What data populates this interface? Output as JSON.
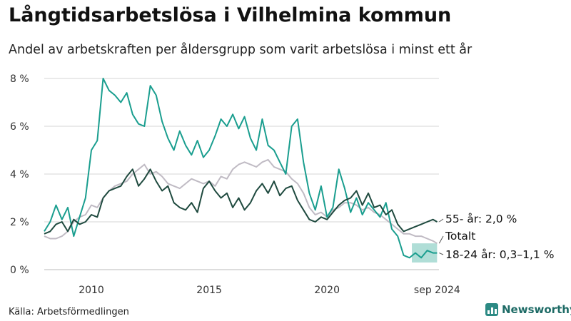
{
  "header": {
    "title": "Långtidsarbetslösa i Vilhelmina kommun",
    "subtitle": "Andel av arbetskraften per åldersgrupp som varit arbetslösa i minst ett år"
  },
  "footer": {
    "source": "Källa: Arbetsförmedlingen",
    "brand": "Newsworthy"
  },
  "colors": {
    "ung": "#1a9e8f",
    "aldre": "#1f4a3f",
    "totalt": "#c0bbc4",
    "band": "#8fd0c6",
    "grid": "#d4d4d4"
  },
  "icons": {
    "brand_logo": "bar-chart-icon"
  },
  "chart_data": {
    "type": "line",
    "x_unit": "date (year, monthly)",
    "xlim": [
      2008.0,
      2024.75
    ],
    "ylim": [
      0,
      8.3
    ],
    "yticks": [
      0,
      2,
      4,
      6,
      8
    ],
    "ytick_labels": [
      "0 %",
      "2 %",
      "4 %",
      "6 %",
      "8 %"
    ],
    "xticks": [
      2010,
      2015,
      2020,
      2024.67
    ],
    "xtick_labels": [
      "2010",
      "2015",
      "2020",
      "sep 2024"
    ],
    "grid": true,
    "legend": "direct labels at line ends (right)",
    "series": [
      {
        "key": "ung",
        "label": "18-24 år: 0,3–1,1 %",
        "x": [
          2008.0,
          2008.25,
          2008.5,
          2008.75,
          2009.0,
          2009.25,
          2009.5,
          2009.75,
          2010.0,
          2010.25,
          2010.5,
          2010.75,
          2011.0,
          2011.25,
          2011.5,
          2011.75,
          2012.0,
          2012.25,
          2012.5,
          2012.75,
          2013.0,
          2013.25,
          2013.5,
          2013.75,
          2014.0,
          2014.25,
          2014.5,
          2014.75,
          2015.0,
          2015.25,
          2015.5,
          2015.75,
          2016.0,
          2016.25,
          2016.5,
          2016.75,
          2017.0,
          2017.25,
          2017.5,
          2017.75,
          2018.0,
          2018.25,
          2018.5,
          2018.75,
          2019.0,
          2019.25,
          2019.5,
          2019.75,
          2020.0,
          2020.25,
          2020.5,
          2020.75,
          2021.0,
          2021.25,
          2021.5,
          2021.75,
          2022.0,
          2022.25,
          2022.5,
          2022.75,
          2023.0,
          2023.25,
          2023.5,
          2023.75,
          2024.0,
          2024.25,
          2024.5,
          2024.67
        ],
        "y": [
          1.6,
          2.0,
          2.7,
          2.1,
          2.6,
          1.4,
          2.2,
          3.0,
          5.0,
          5.4,
          8.0,
          7.5,
          7.3,
          7.0,
          7.4,
          6.5,
          6.1,
          6.0,
          7.7,
          7.3,
          6.2,
          5.5,
          5.0,
          5.8,
          5.2,
          4.8,
          5.4,
          4.7,
          5.0,
          5.6,
          6.3,
          6.0,
          6.5,
          5.9,
          6.4,
          5.5,
          5.0,
          6.3,
          5.2,
          5.0,
          4.5,
          4.0,
          6.0,
          6.3,
          4.5,
          3.2,
          2.5,
          3.5,
          2.2,
          2.6,
          4.2,
          3.4,
          2.4,
          3.0,
          2.3,
          2.8,
          2.5,
          2.2,
          2.8,
          1.7,
          1.4,
          0.6,
          0.5,
          0.7,
          0.5,
          0.8,
          0.7,
          0.7
        ],
        "band": {
          "x": [
            2023.6,
            2024.67
          ],
          "low": [
            0.3,
            0.3
          ],
          "high": [
            1.1,
            1.1
          ]
        }
      },
      {
        "key": "aldre",
        "label": "55- år: 2,0 %",
        "x": [
          2008.0,
          2008.25,
          2008.5,
          2008.75,
          2009.0,
          2009.25,
          2009.5,
          2009.75,
          2010.0,
          2010.25,
          2010.5,
          2010.75,
          2011.0,
          2011.25,
          2011.5,
          2011.75,
          2012.0,
          2012.25,
          2012.5,
          2012.75,
          2013.0,
          2013.25,
          2013.5,
          2013.75,
          2014.0,
          2014.25,
          2014.5,
          2014.75,
          2015.0,
          2015.25,
          2015.5,
          2015.75,
          2016.0,
          2016.25,
          2016.5,
          2016.75,
          2017.0,
          2017.25,
          2017.5,
          2017.75,
          2018.0,
          2018.25,
          2018.5,
          2018.75,
          2019.0,
          2019.25,
          2019.5,
          2019.75,
          2020.0,
          2020.25,
          2020.5,
          2020.75,
          2021.0,
          2021.25,
          2021.5,
          2021.75,
          2022.0,
          2022.25,
          2022.5,
          2022.75,
          2023.0,
          2023.25,
          2023.5,
          2023.75,
          2024.0,
          2024.25,
          2024.5,
          2024.67
        ],
        "y": [
          1.5,
          1.6,
          1.9,
          2.0,
          1.6,
          2.1,
          1.9,
          2.0,
          2.3,
          2.2,
          3.0,
          3.3,
          3.4,
          3.5,
          3.9,
          4.2,
          3.5,
          3.8,
          4.2,
          3.7,
          3.3,
          3.5,
          2.8,
          2.6,
          2.5,
          2.8,
          2.4,
          3.4,
          3.7,
          3.3,
          3.0,
          3.2,
          2.6,
          3.0,
          2.5,
          2.8,
          3.3,
          3.6,
          3.2,
          3.7,
          3.1,
          3.4,
          3.5,
          2.9,
          2.5,
          2.1,
          2.0,
          2.2,
          2.1,
          2.4,
          2.7,
          2.9,
          3.0,
          3.3,
          2.7,
          3.2,
          2.6,
          2.7,
          2.3,
          2.5,
          1.9,
          1.6,
          1.7,
          1.8,
          1.9,
          2.0,
          2.1,
          2.0
        ]
      },
      {
        "key": "totalt",
        "label": "Totalt",
        "x": [
          2008.0,
          2008.25,
          2008.5,
          2008.75,
          2009.0,
          2009.25,
          2009.5,
          2009.75,
          2010.0,
          2010.25,
          2010.5,
          2010.75,
          2011.0,
          2011.25,
          2011.5,
          2011.75,
          2012.0,
          2012.25,
          2012.5,
          2012.75,
          2013.0,
          2013.25,
          2013.5,
          2013.75,
          2014.0,
          2014.25,
          2014.5,
          2014.75,
          2015.0,
          2015.25,
          2015.5,
          2015.75,
          2016.0,
          2016.25,
          2016.5,
          2016.75,
          2017.0,
          2017.25,
          2017.5,
          2017.75,
          2018.0,
          2018.25,
          2018.5,
          2018.75,
          2019.0,
          2019.25,
          2019.5,
          2019.75,
          2020.0,
          2020.25,
          2020.5,
          2020.75,
          2021.0,
          2021.25,
          2021.5,
          2021.75,
          2022.0,
          2022.25,
          2022.5,
          2022.75,
          2023.0,
          2023.25,
          2023.5,
          2023.75,
          2024.0,
          2024.25,
          2024.5,
          2024.67
        ],
        "y": [
          1.4,
          1.3,
          1.3,
          1.4,
          1.6,
          2.0,
          2.2,
          2.3,
          2.7,
          2.6,
          3.0,
          3.3,
          3.5,
          3.6,
          3.7,
          4.0,
          4.2,
          4.4,
          4.0,
          4.1,
          3.9,
          3.6,
          3.5,
          3.4,
          3.6,
          3.8,
          3.7,
          3.6,
          3.7,
          3.5,
          3.9,
          3.8,
          4.2,
          4.4,
          4.5,
          4.4,
          4.3,
          4.5,
          4.6,
          4.3,
          4.2,
          4.1,
          3.8,
          3.6,
          3.2,
          2.6,
          2.3,
          2.4,
          2.2,
          2.5,
          2.6,
          2.8,
          2.8,
          2.7,
          2.5,
          2.6,
          2.4,
          2.3,
          2.1,
          1.9,
          1.7,
          1.5,
          1.5,
          1.4,
          1.4,
          1.3,
          1.2,
          1.1
        ]
      }
    ]
  }
}
